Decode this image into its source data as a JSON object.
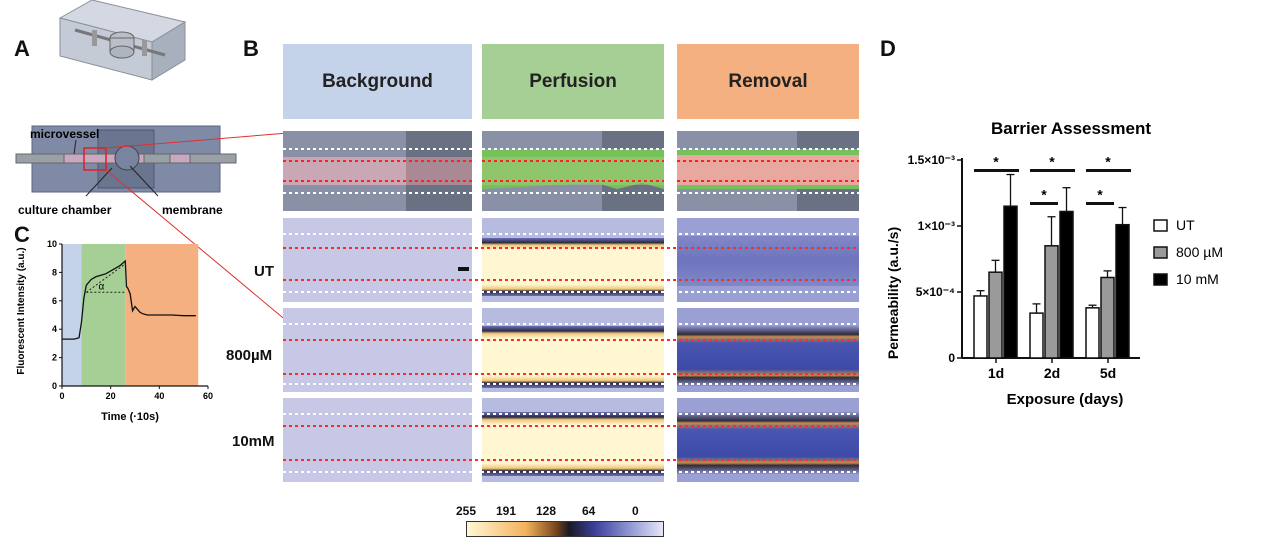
{
  "panels": {
    "a": "A",
    "b": "B",
    "c": "C",
    "d": "D"
  },
  "panel_a": {
    "labels": {
      "microvessel": "microvessel",
      "culture_chamber": "culture chamber",
      "membrane": "membrane"
    }
  },
  "panel_b": {
    "columns": [
      "Background",
      "Perfusion",
      "Removal"
    ],
    "rows": [
      "UT",
      "800µM",
      "10mM"
    ],
    "colorbar_ticks": [
      "255",
      "191",
      "128",
      "64",
      "0"
    ],
    "colors": {
      "background": "#c5d3ea",
      "perfusion": "#a6cf95",
      "removal": "#f4b080"
    }
  },
  "chart_data": [
    {
      "type": "line",
      "panel": "C",
      "xlabel": "Time (·10s)",
      "ylabel": "Fluorescent Intensity (a.u.)",
      "xlim": [
        0,
        60
      ],
      "ylim": [
        0,
        10
      ],
      "xticks": [
        "0",
        "20",
        "40",
        "60"
      ],
      "yticks": [
        "0",
        "2",
        "4",
        "6",
        "8",
        "10"
      ],
      "phases": [
        {
          "name": "Background",
          "x": [
            0,
            8
          ],
          "color": "#c5d3ea"
        },
        {
          "name": "Perfusion",
          "x": [
            8,
            26
          ],
          "color": "#a6cf95"
        },
        {
          "name": "Removal",
          "x": [
            26,
            56
          ],
          "color": "#f4b080"
        }
      ],
      "annotation": "α",
      "series": [
        {
          "x": [
            0,
            5,
            7,
            8,
            9,
            10,
            12,
            14,
            16,
            18,
            20,
            22,
            24,
            26,
            26.5,
            27,
            28,
            29,
            30,
            31,
            32,
            33,
            35,
            40,
            45,
            50,
            55
          ],
          "values": [
            3.3,
            3.3,
            3.4,
            4.5,
            6.2,
            7.1,
            7.5,
            7.7,
            7.8,
            7.9,
            8.1,
            8.3,
            8.5,
            8.8,
            7.0,
            6.9,
            6.5,
            5.3,
            5.6,
            5.4,
            5.2,
            5.1,
            5.0,
            5.0,
            5.0,
            4.95,
            4.95
          ]
        }
      ]
    },
    {
      "type": "bar",
      "panel": "D",
      "title": "Barrier Assessment",
      "xlabel": "Exposure (days)",
      "ylabel": "Permeability (a.u./s)",
      "categories": [
        "1d",
        "2d",
        "5d"
      ],
      "ylim": [
        0,
        0.0015
      ],
      "yticks": [
        "0",
        "5×10⁻⁴",
        "1×10⁻³",
        "1.5×10⁻³"
      ],
      "series": [
        {
          "name": "UT",
          "color": "#ffffff",
          "values": [
            0.00047,
            0.00034,
            0.00038
          ],
          "errors": [
            4e-05,
            7e-05,
            2e-05
          ]
        },
        {
          "name": "800 µM",
          "color": "#9a9a9a",
          "values": [
            0.00065,
            0.00085,
            0.00061
          ],
          "errors": [
            9e-05,
            0.00022,
            5e-05
          ]
        },
        {
          "name": "10 mM",
          "color": "#000000",
          "values": [
            0.00115,
            0.00111,
            0.00101
          ],
          "errors": [
            0.00024,
            0.00018,
            0.00013
          ]
        }
      ],
      "significance": "*"
    }
  ]
}
